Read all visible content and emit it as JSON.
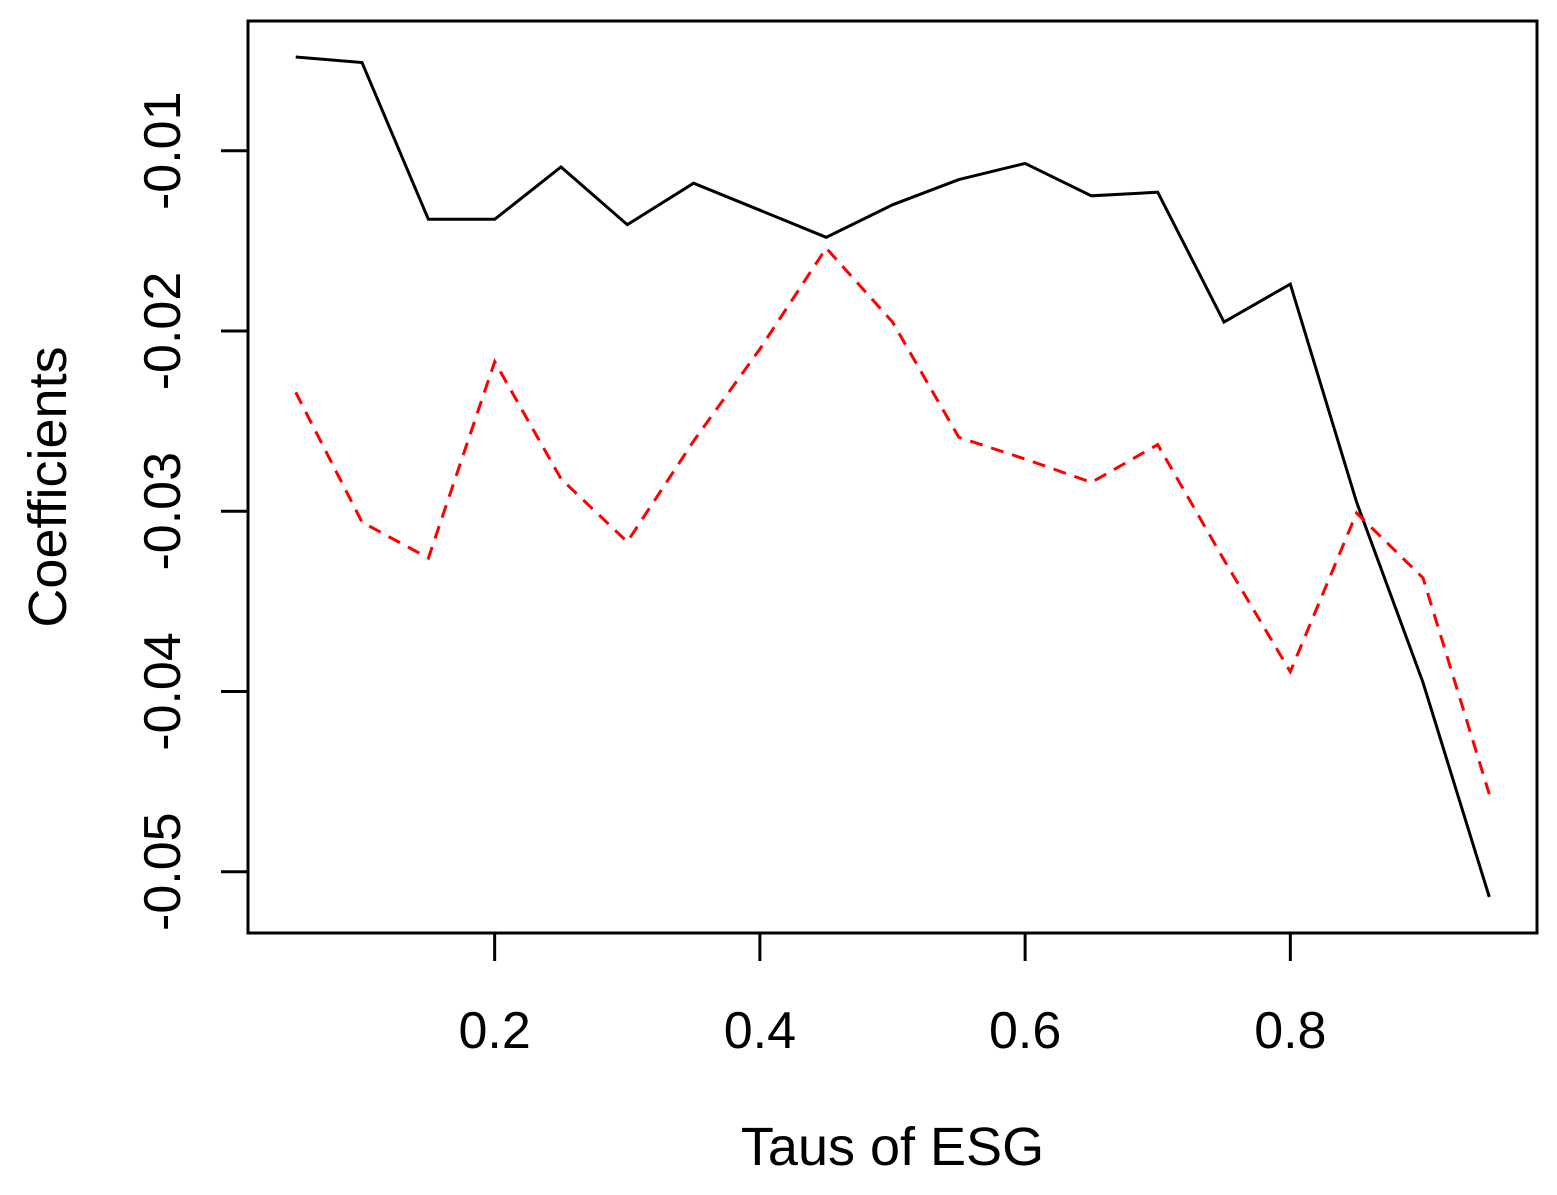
{
  "chart_data": {
    "type": "line",
    "title": "",
    "xlabel": "Taus of ESG",
    "ylabel": "Coefficients",
    "x": [
      0.05,
      0.1,
      0.15,
      0.2,
      0.25,
      0.3,
      0.35,
      0.4,
      0.45,
      0.5,
      0.55,
      0.6,
      0.65,
      0.7,
      0.75,
      0.8,
      0.85,
      0.9,
      0.95
    ],
    "series": [
      {
        "name": "solid-black-line",
        "color": "#000000",
        "style": "solid",
        "values": [
          -0.0048,
          -0.0051,
          -0.0138,
          -0.0138,
          -0.0109,
          -0.0141,
          -0.0118,
          -0.0133,
          -0.0148,
          -0.013,
          -0.0116,
          -0.0107,
          -0.0125,
          -0.0123,
          -0.0195,
          -0.0174,
          -0.0295,
          -0.0395,
          -0.0514
        ]
      },
      {
        "name": "dashed-red-line",
        "color": "#FF0000",
        "style": "dashed",
        "values": [
          -0.0234,
          -0.0306,
          -0.0326,
          -0.0217,
          -0.0282,
          -0.0317,
          -0.0261,
          -0.021,
          -0.0154,
          -0.0195,
          -0.0259,
          -0.0271,
          -0.0284,
          -0.0263,
          -0.0327,
          -0.0389,
          -0.0301,
          -0.0337,
          -0.0457
        ]
      }
    ],
    "xticks": [
      0.2,
      0.4,
      0.6,
      0.8
    ],
    "xtick_labels": [
      "0.2",
      "0.4",
      "0.6",
      "0.8"
    ],
    "yticks": [
      -0.01,
      -0.02,
      -0.03,
      -0.04,
      -0.05
    ],
    "ytick_labels": [
      "-0.01",
      "-0.02",
      "-0.03",
      "-0.04",
      "-0.05"
    ],
    "xlim": [
      0.014,
      0.986
    ],
    "ylim": [
      -0.0534,
      -0.0028
    ],
    "grid": false,
    "legend": "none"
  }
}
